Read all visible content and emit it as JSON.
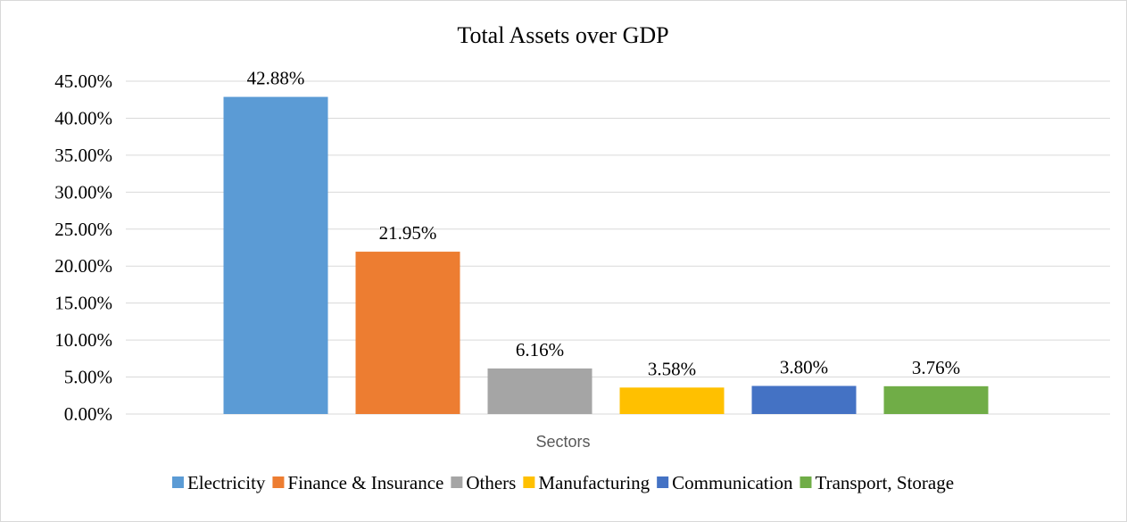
{
  "chart_data": {
    "type": "bar",
    "title": "Total Assets over GDP",
    "xlabel": "Sectors",
    "ylabel": "",
    "ylim": [
      0,
      0.45
    ],
    "y_tick_step": 0.05,
    "y_tick_labels": [
      "0.00%",
      "5.00%",
      "10.00%",
      "15.00%",
      "20.00%",
      "25.00%",
      "30.00%",
      "35.00%",
      "40.00%",
      "45.00%"
    ],
    "grid": true,
    "legend_position": "bottom",
    "series": [
      {
        "name": "Electricity",
        "value": 0.4288,
        "label": "42.88%",
        "color": "#5b9bd5"
      },
      {
        "name": "Finance & Insurance",
        "value": 0.2195,
        "label": "21.95%",
        "color": "#ed7d31"
      },
      {
        "name": "Others",
        "value": 0.0616,
        "label": "6.16%",
        "color": "#a5a5a5"
      },
      {
        "name": "Manufacturing",
        "value": 0.0358,
        "label": "3.58%",
        "color": "#ffc000"
      },
      {
        "name": "Communication",
        "value": 0.038,
        "label": "3.80%",
        "color": "#4472c4"
      },
      {
        "name": "Transport, Storage",
        "value": 0.0376,
        "label": "3.76%",
        "color": "#70ad47"
      }
    ]
  }
}
